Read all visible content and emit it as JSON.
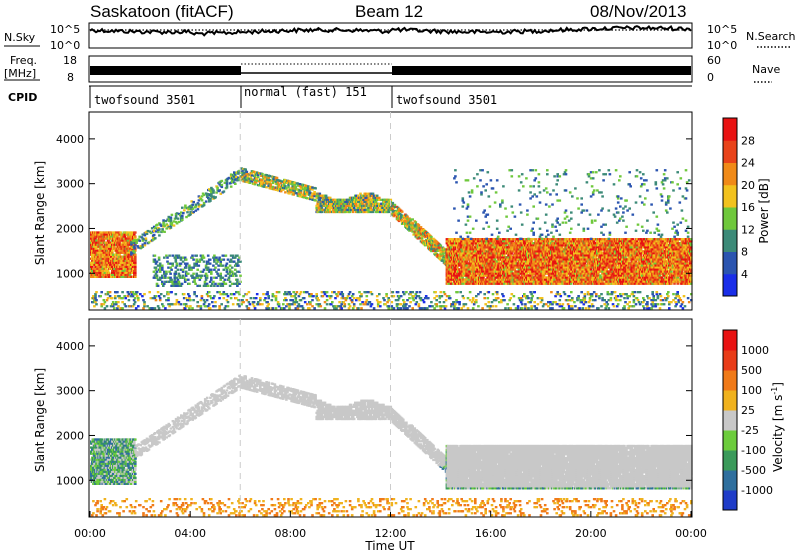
{
  "header": {
    "station": "Saskatoon (fitACF)",
    "beam": "Beam 12",
    "date": "08/Nov/2013"
  },
  "noise_panel": {
    "left_label": "N.Sky",
    "right_label": "N.Search",
    "left_ticks": [
      "10^5",
      "10^0"
    ],
    "right_ticks": [
      "10^5",
      "10^0"
    ]
  },
  "freq_panel": {
    "left_label_line1": "Freq.",
    "left_label_line2": "[MHz]",
    "right_label": "Nave",
    "left_ticks": [
      "18",
      "8"
    ],
    "right_ticks": [
      "60",
      "0"
    ]
  },
  "cpid_panel": {
    "label": "CPID",
    "segments": [
      {
        "name": "twofsound 3501",
        "start_hour": 0,
        "end_hour": 6
      },
      {
        "name": "normal (fast) 151",
        "start_hour": 6,
        "end_hour": 12
      },
      {
        "name": "twofsound 3501",
        "start_hour": 12,
        "end_hour": 24
      }
    ]
  },
  "chart_data": [
    {
      "type": "heatmap",
      "title": "",
      "ylabel": "Slant Range [km]",
      "xlabel": "",
      "xlim_hours": [
        0,
        24
      ],
      "ylim": [
        180,
        4600
      ],
      "yticks": [
        1000,
        2000,
        3000,
        4000
      ],
      "colorbar": {
        "label": "Power [dB]",
        "ticks": [
          "4",
          "8",
          "12",
          "16",
          "20",
          "24",
          "28"
        ],
        "range": [
          0,
          30
        ],
        "colors": [
          "#1a2ee8",
          "#2b55b0",
          "#3c8a78",
          "#6fc83c",
          "#f2c21e",
          "#f08a18",
          "#e8431a",
          "#e81212"
        ]
      },
      "description_regions": [
        {
          "hours": [
            0.0,
            1.8
          ],
          "range_km": [
            900,
            1900
          ],
          "power": 24
        },
        {
          "hours": [
            6.0,
            12.0
          ],
          "range_km": [
            2200,
            3300
          ],
          "power": 18
        },
        {
          "hours": [
            14.0,
            24.0
          ],
          "range_km": [
            800,
            1700
          ],
          "power": 26
        },
        {
          "hours": [
            12.5,
            14.5
          ],
          "range_km": [
            1200,
            2100
          ],
          "power": 14
        }
      ]
    },
    {
      "type": "heatmap",
      "title": "",
      "ylabel": "Slant Range [km]",
      "xlabel": "Time UT",
      "xlim_hours": [
        0,
        24
      ],
      "ylim": [
        180,
        4600
      ],
      "yticks": [
        1000,
        2000,
        3000,
        4000
      ],
      "xticks": [
        "00:00",
        "04:00",
        "08:00",
        "12:00",
        "16:00",
        "20:00",
        "00:00"
      ],
      "colorbar": {
        "label": "Velocity [m s",
        "label_sup": "-1",
        "label_end": "]",
        "ticks": [
          "1000",
          "500",
          "100",
          "25",
          "-25",
          "-100",
          "-500",
          "-1000"
        ],
        "colors": [
          "#1f3cc8",
          "#2f6f9e",
          "#3a9a5a",
          "#6ccc3c",
          "#c8c8c8",
          "#f0b21e",
          "#f07a18",
          "#e83c18",
          "#e81212"
        ]
      }
    }
  ],
  "colors": {
    "axis": "#000000",
    "ground_scatter": "#c8c8c8",
    "dashed_line": "#cccccc"
  }
}
